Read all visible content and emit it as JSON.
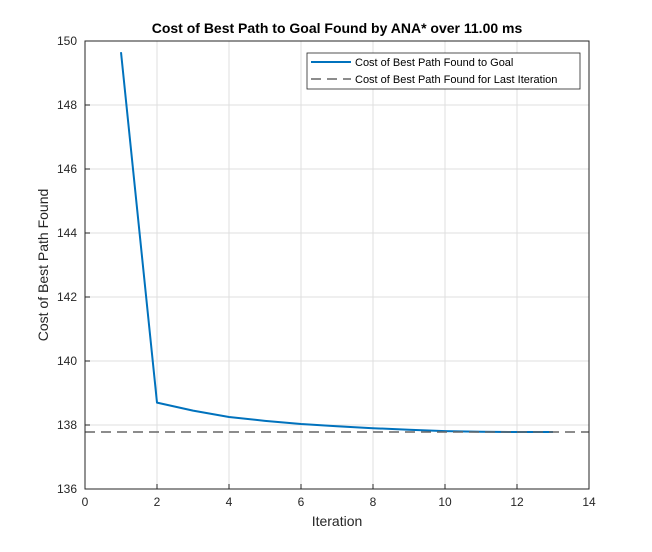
{
  "chart_data": {
    "type": "line",
    "title": "Cost of Best Path to Goal Found by ANA* over 11.00 ms",
    "xlabel": "Iteration",
    "ylabel": "Cost of Best Path Found",
    "xlim": [
      0,
      14
    ],
    "ylim": [
      136,
      150
    ],
    "xticks": [
      0,
      2,
      4,
      6,
      8,
      10,
      12,
      14
    ],
    "yticks": [
      136,
      138,
      140,
      142,
      144,
      146,
      148,
      150
    ],
    "grid": true,
    "legend_position": "top-right",
    "series": [
      {
        "name": "Cost of Best Path Found to Goal",
        "style": "solid",
        "color": "#0072bd",
        "x": [
          1,
          2,
          3,
          4,
          5,
          6,
          7,
          8,
          9,
          10,
          11,
          12,
          13
        ],
        "y": [
          149.65,
          138.7,
          138.45,
          138.25,
          138.13,
          138.03,
          137.96,
          137.9,
          137.85,
          137.81,
          137.79,
          137.78,
          137.78
        ]
      },
      {
        "name": "Cost of Best Path Found for Last Iteration",
        "style": "dashed",
        "color": "#666666",
        "y_constant": 137.78
      }
    ]
  }
}
